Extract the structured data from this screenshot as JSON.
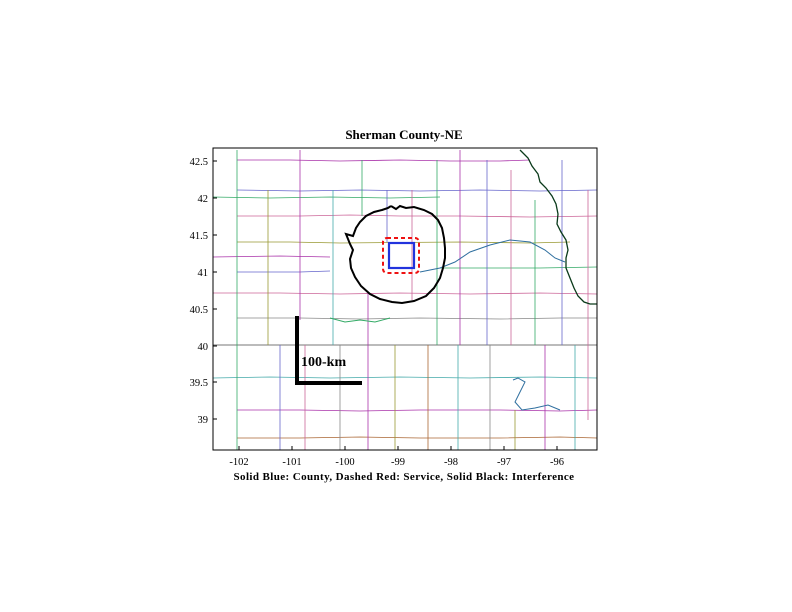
{
  "map": {
    "title": "Sherman County-NE",
    "caption": "Solid Blue: County, Dashed Red: Service, Solid Black: Interference",
    "lon_range": [
      -102.5,
      -95.4
    ],
    "lat_range": [
      38.6,
      42.7
    ],
    "x_ticks": [
      "-102",
      "-101",
      "-100",
      "-99",
      "-98",
      "-97",
      "-96"
    ],
    "y_ticks": [
      "42.5",
      "42",
      "41.5",
      "41",
      "40.5",
      "40",
      "39.5",
      "39"
    ],
    "scale_bar_label": "100-km",
    "legend": {
      "county": {
        "label": "County",
        "color": "#2233dd",
        "style": "solid"
      },
      "service": {
        "label": "Service",
        "color": "#ee1111",
        "style": "dashed"
      },
      "interference": {
        "label": "Interference",
        "color": "#000000",
        "style": "solid"
      }
    },
    "county_border_colors": [
      "#aa33aa",
      "#33aa66",
      "#6666cc",
      "#999933",
      "#cc6699",
      "#888888",
      "#44aaaa",
      "#aa6633"
    ]
  }
}
